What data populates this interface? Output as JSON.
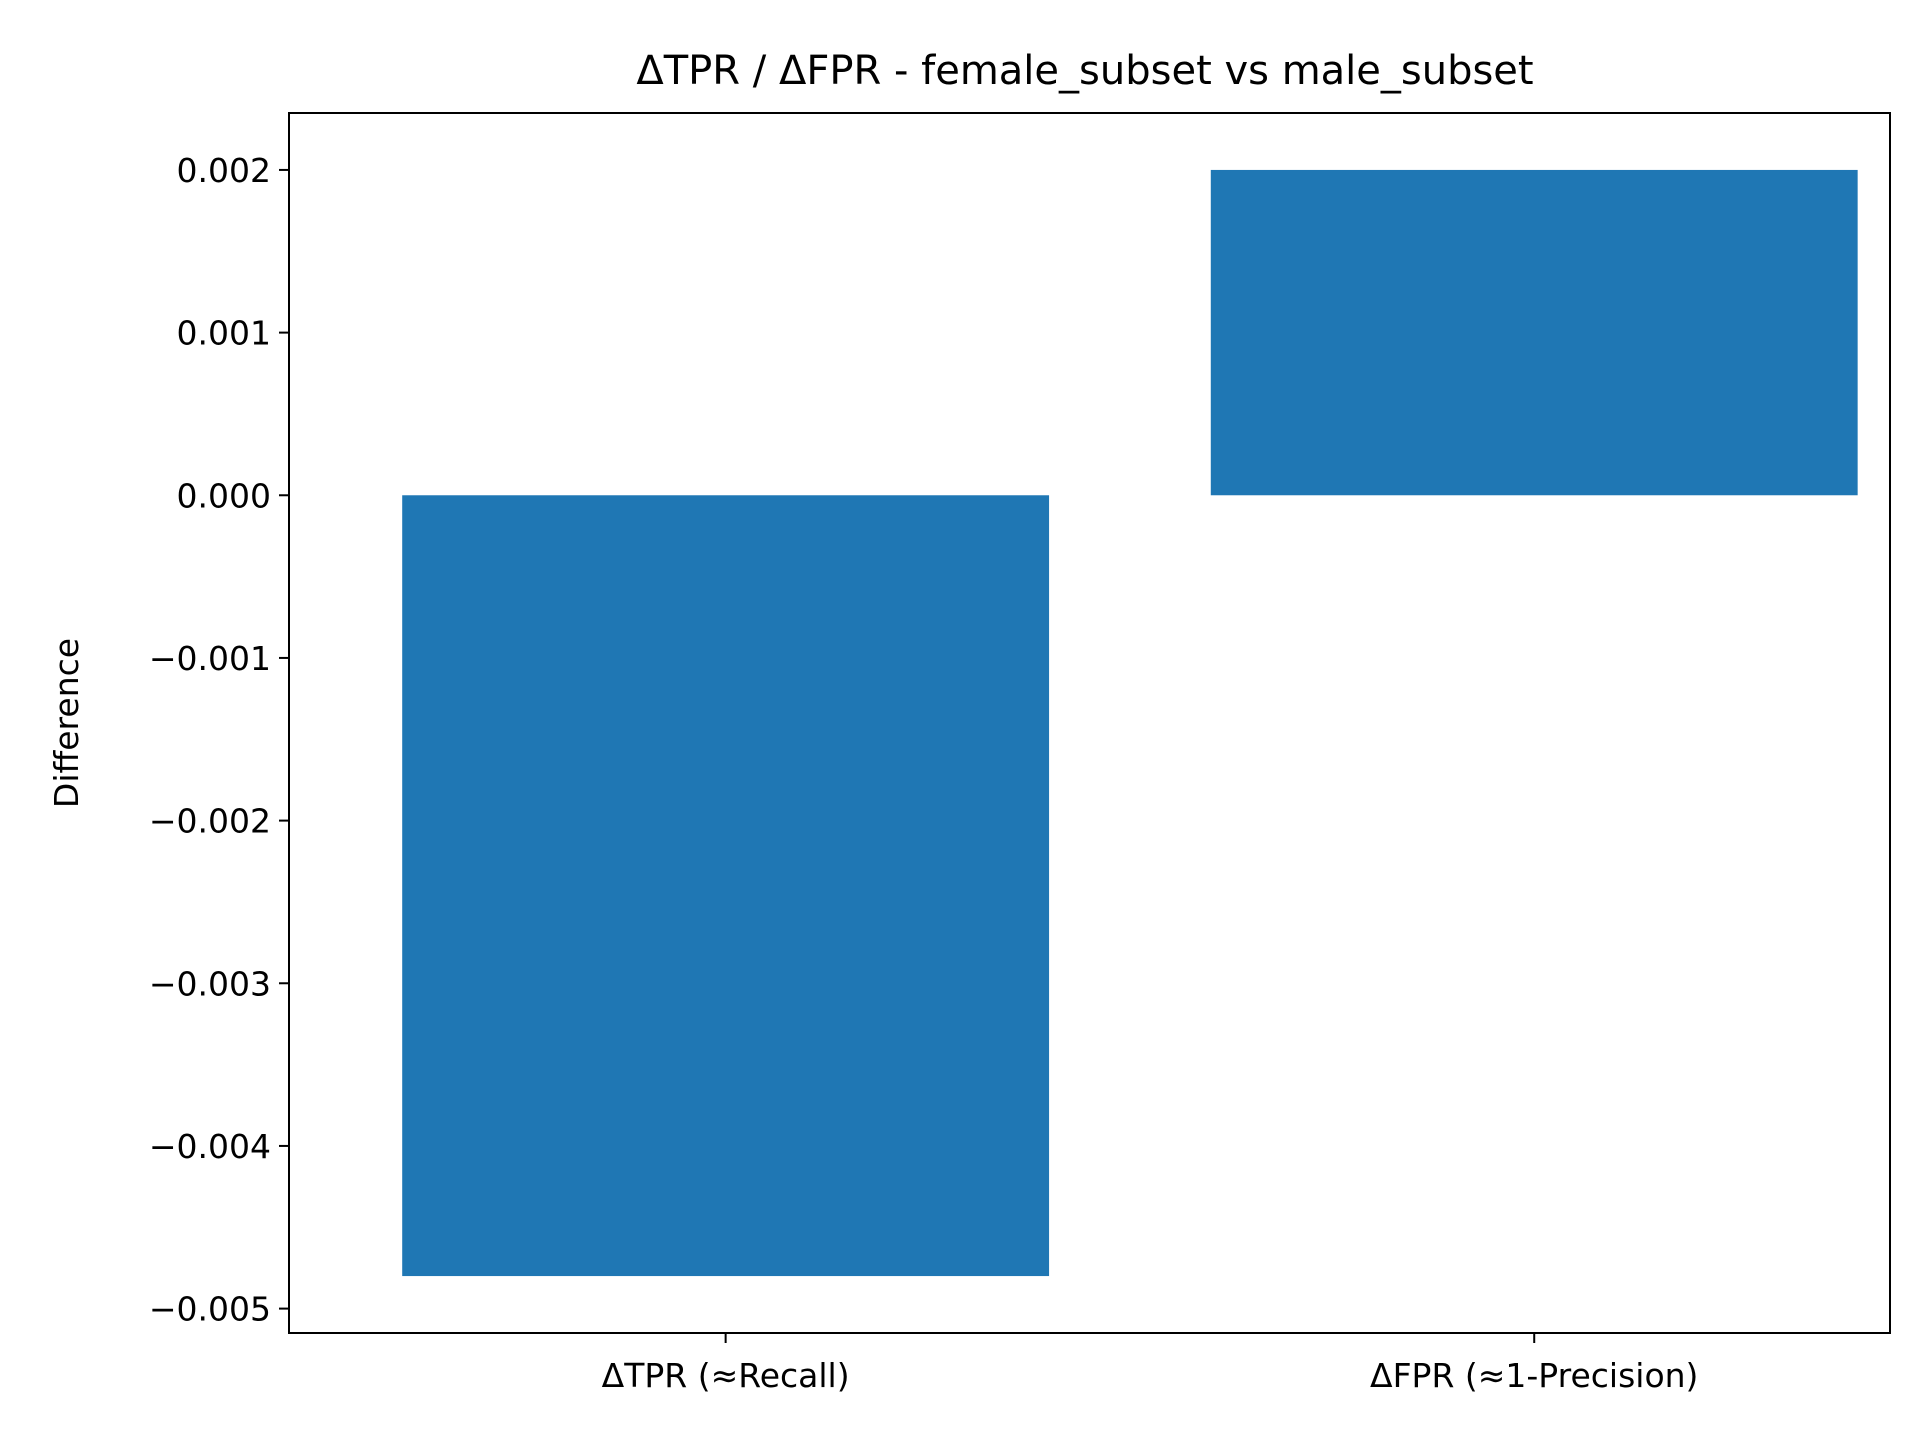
{
  "chart_data": {
    "type": "bar",
    "title": "ΔTPR / ΔFPR - female_subset vs male_subset",
    "xlabel": "",
    "ylabel": "Difference",
    "categories": [
      "ΔTPR (≈Recall)",
      "ΔFPR (≈1-Precision)"
    ],
    "values": [
      -0.0048,
      0.002
    ],
    "ylim": [
      -0.00515,
      0.00235
    ],
    "yticks": [
      0.002,
      0.001,
      0.0,
      -0.001,
      -0.002,
      -0.003,
      -0.004,
      -0.005
    ],
    "ytick_labels": [
      "0.002",
      "0.001",
      "0.000",
      "−0.001",
      "−0.002",
      "−0.003",
      "−0.004",
      "−0.005"
    ],
    "bar_color": "#1f77b4",
    "grid": false,
    "legend": "none"
  }
}
